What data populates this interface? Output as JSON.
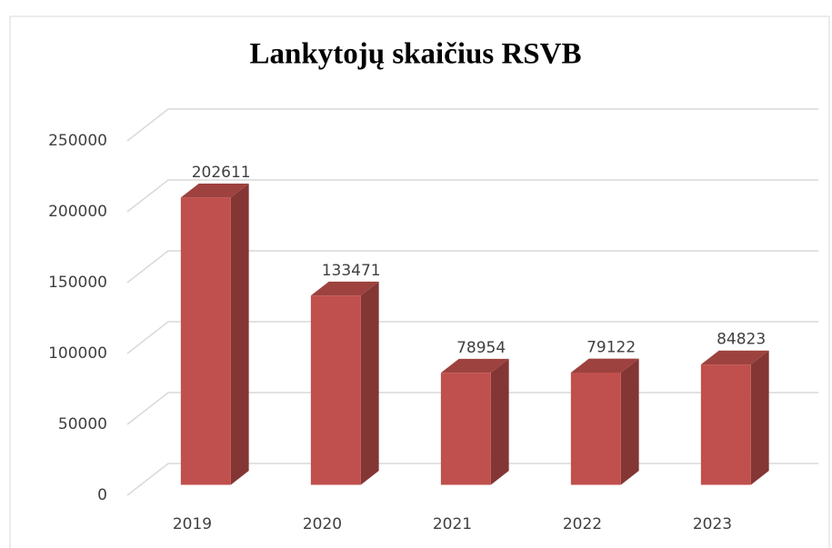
{
  "chart_data": {
    "type": "bar3d",
    "title": "Lankytojų skaičius RSVB",
    "categories": [
      "2019",
      "2020",
      "2021",
      "2022",
      "2023"
    ],
    "values": [
      202611,
      133471,
      78954,
      79122,
      84823
    ],
    "color": "#c0504d",
    "ylim": [
      0,
      250000
    ],
    "yticks": [
      0,
      50000,
      100000,
      150000,
      200000,
      250000
    ],
    "grid": true
  }
}
